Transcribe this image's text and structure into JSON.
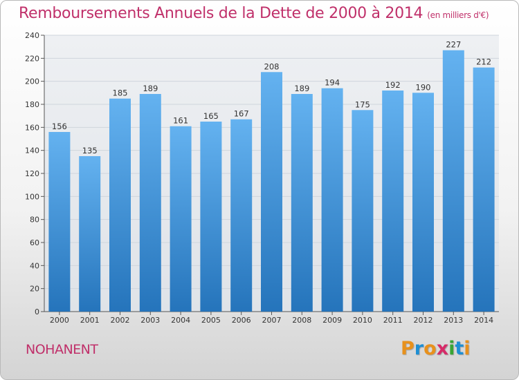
{
  "title": "Remboursements Annuels de la Dette de 2000 à 2014",
  "unit": "(en milliers d'€)",
  "commune": "NOHANENT",
  "logo": {
    "text": "Proxiti",
    "letter_colors": [
      "#e8911c",
      "#1e8fd4",
      "#e8911c",
      "#d62b68",
      "#39a535",
      "#1e8fd4",
      "#e8911c"
    ]
  },
  "colors": {
    "title": "#c0306a",
    "bar_light": "#64b2f0",
    "bar_dark": "#2574bb",
    "grid": "#cfd5dc",
    "axis": "#555555"
  },
  "chart_data": {
    "type": "bar",
    "title": "Remboursements Annuels de la Dette de 2000 à 2014",
    "ylabel": "en milliers d'€",
    "xlabel": "",
    "categories": [
      "2000",
      "2001",
      "2002",
      "2003",
      "2004",
      "2005",
      "2006",
      "2007",
      "2008",
      "2009",
      "2010",
      "2011",
      "2012",
      "2013",
      "2014"
    ],
    "values": [
      156,
      135,
      185,
      189,
      161,
      165,
      167,
      208,
      189,
      194,
      175,
      192,
      190,
      227,
      212
    ],
    "ylim": [
      0,
      240
    ],
    "yticks": [
      0,
      20,
      40,
      60,
      80,
      100,
      120,
      140,
      160,
      180,
      200,
      220,
      240
    ],
    "grid": true
  }
}
